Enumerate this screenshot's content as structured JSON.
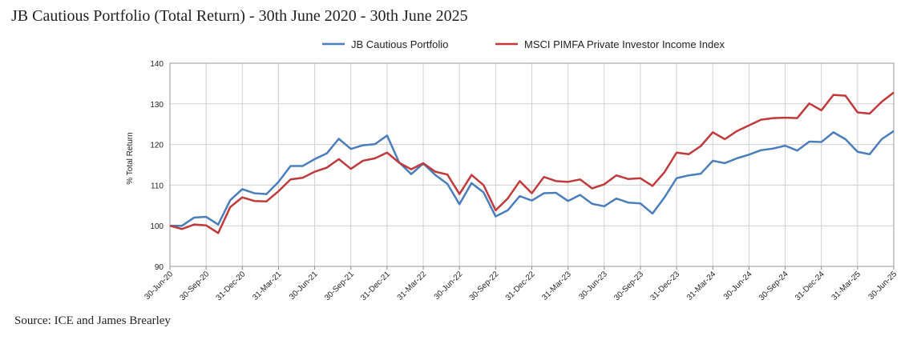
{
  "chart_data": {
    "type": "line",
    "title": "JB Cautious Portfolio (Total Return) - 30th June 2020 - 30th June 2025",
    "source": "Source: ICE and James Brearley",
    "y_label": "% Total Return",
    "categories": [
      "30-Jun-20",
      null,
      null,
      "30-Sep-20",
      null,
      null,
      "31-Dec-20",
      null,
      null,
      "31-Mar-21",
      null,
      null,
      "30-Jun-21",
      null,
      null,
      "30-Sep-21",
      null,
      null,
      "31-Dec-21",
      null,
      null,
      "31-Mar-22",
      null,
      null,
      "30-Jun-22",
      null,
      null,
      "30-Sep-22",
      null,
      null,
      "31-Dec-22",
      null,
      null,
      "31-Mar-23",
      null,
      null,
      "30-Jun-23",
      null,
      null,
      "30-Sep-23",
      null,
      null,
      "31-Dec-23",
      null,
      null,
      "31-Mar-24",
      null,
      null,
      "30-Jun-24",
      null,
      null,
      "30-Sep-24",
      null,
      null,
      "31-Dec-24",
      null,
      null,
      "31-Mar-25",
      null,
      null,
      "30-Jun-25"
    ],
    "series": [
      {
        "name": "JB Cautious Portfolio",
        "color": "#4a7ebb",
        "values": [
          100,
          100,
          102,
          102.2,
          100.3,
          106.3,
          109,
          108,
          107.8,
          110.8,
          114.7,
          114.7,
          116.4,
          117.8,
          121.4,
          118.9,
          119.8,
          120.1,
          122.2,
          115.6,
          112.7,
          115.3,
          112.5,
          110.3,
          105.3,
          110.5,
          108.2,
          102.3,
          103.8,
          107.3,
          106.2,
          108,
          108.1,
          106.1,
          107.6,
          105.4,
          104.8,
          106.7,
          105.7,
          105.5,
          103,
          107,
          111.7,
          112.4,
          112.8,
          116,
          115.4,
          116.6,
          117.5,
          118.6,
          119,
          119.7,
          118.5,
          120.7,
          120.6,
          123,
          121.3,
          118.2,
          117.6,
          121.3,
          123.3
        ]
      },
      {
        "name": "MSCI PIMFA Private Investor Income Index",
        "color": "#c0393b",
        "values": [
          100,
          99.2,
          100.3,
          100.1,
          98.2,
          104.6,
          107,
          106.1,
          106,
          108.5,
          111.4,
          111.8,
          113.3,
          114.3,
          116.4,
          114,
          116,
          116.6,
          118,
          115.5,
          113.9,
          115.4,
          113.3,
          112.6,
          107.8,
          112.5,
          110,
          103.8,
          106.7,
          111,
          108,
          112,
          111,
          110.8,
          111.4,
          109.2,
          110.2,
          112.4,
          111.5,
          111.7,
          109.8,
          113.2,
          118,
          117.6,
          119.6,
          123,
          121.3,
          123.3,
          124.7,
          126.1,
          126.5,
          126.6,
          126.5,
          130.1,
          128.4,
          132.2,
          132,
          127.9,
          127.6,
          130.5,
          132.8
        ]
      }
    ],
    "ylim": [
      90,
      140
    ],
    "yticks": [
      90,
      100,
      110,
      120,
      130,
      140
    ],
    "grid": true,
    "legend": "top"
  }
}
